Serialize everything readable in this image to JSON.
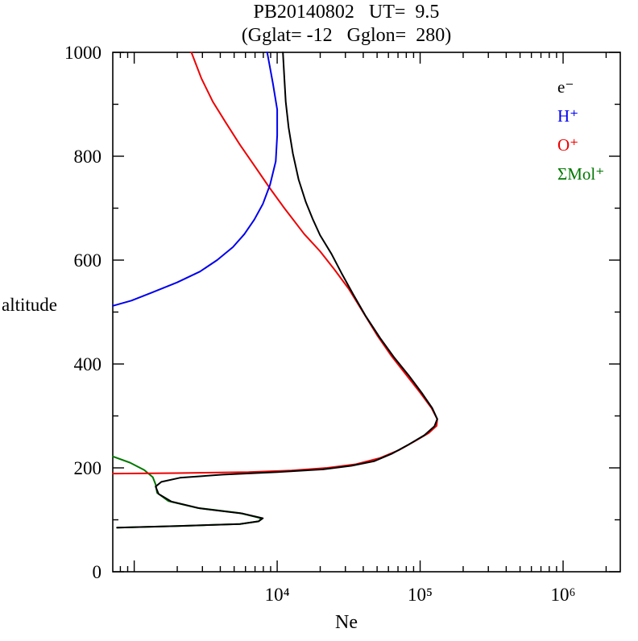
{
  "chart_data": {
    "type": "line",
    "title": "PB20140802   UT=  9.5",
    "subtitle": "(Gglat= -12   Gglon=  280)",
    "xlabel": "Ne",
    "ylabel": "altitude",
    "x_axis": {
      "scale": "log10",
      "range_log10": [
        2.85,
        6.4
      ],
      "labeled_decades": [
        4,
        5,
        6
      ],
      "decade_labels": [
        "10⁴",
        "10⁵",
        "10⁶"
      ]
    },
    "y_axis": {
      "range": [
        0,
        1000
      ],
      "major_tick_step": 200,
      "minor_tick_step": 100,
      "tick_labels": [
        "0",
        "200",
        "400",
        "600",
        "800",
        "1000"
      ]
    },
    "legend": {
      "position": "upper-right",
      "entries": [
        {
          "label": "e⁻",
          "color": "#000000"
        },
        {
          "label": "H⁺",
          "color": "#0000ee"
        },
        {
          "label": "O⁺",
          "color": "#ee0000"
        },
        {
          "label": "ΣMol⁺",
          "color": "#007700"
        }
      ]
    },
    "series": [
      {
        "name": "ΣMol⁺",
        "color": "#007700",
        "points_log10x_alt": [
          [
            2.85,
            222
          ],
          [
            2.97,
            210
          ],
          [
            3.07,
            196
          ],
          [
            3.13,
            182
          ],
          [
            3.15,
            168
          ],
          [
            3.16,
            152
          ],
          [
            3.24,
            136
          ],
          [
            3.44,
            123
          ],
          [
            3.74,
            113
          ],
          [
            3.89,
            103
          ],
          [
            3.87,
            97
          ],
          [
            3.74,
            92
          ],
          [
            3.3,
            88
          ],
          [
            2.88,
            85
          ]
        ]
      },
      {
        "name": "O⁺",
        "color": "#ee0000",
        "points_log10x_alt": [
          [
            2.85,
            189
          ],
          [
            3.3,
            190
          ],
          [
            3.8,
            192
          ],
          [
            4.1,
            195
          ],
          [
            4.35,
            200
          ],
          [
            4.55,
            207
          ],
          [
            4.72,
            219
          ],
          [
            4.85,
            234
          ],
          [
            4.96,
            251
          ],
          [
            5.06,
            267
          ],
          [
            5.115,
            281
          ],
          [
            5.12,
            294
          ],
          [
            5.08,
            315
          ],
          [
            5.0,
            345
          ],
          [
            4.9,
            380
          ],
          [
            4.8,
            415
          ],
          [
            4.7,
            455
          ],
          [
            4.6,
            500
          ],
          [
            4.5,
            545
          ],
          [
            4.4,
            582
          ],
          [
            4.3,
            617
          ],
          [
            4.19,
            650
          ],
          [
            4.05,
            700
          ],
          [
            3.95,
            738
          ],
          [
            3.85,
            778
          ],
          [
            3.74,
            822
          ],
          [
            3.64,
            865
          ],
          [
            3.55,
            905
          ],
          [
            3.47,
            950
          ],
          [
            3.4,
            1000
          ]
        ]
      },
      {
        "name": "H⁺",
        "color": "#0000ee",
        "points_log10x_alt": [
          [
            2.85,
            512
          ],
          [
            2.98,
            522
          ],
          [
            3.12,
            537
          ],
          [
            3.3,
            557
          ],
          [
            3.46,
            578
          ],
          [
            3.58,
            600
          ],
          [
            3.69,
            625
          ],
          [
            3.77,
            650
          ],
          [
            3.84,
            678
          ],
          [
            3.9,
            708
          ],
          [
            3.95,
            745
          ],
          [
            3.99,
            790
          ],
          [
            4.0,
            840
          ],
          [
            4.0,
            890
          ],
          [
            3.97,
            940
          ],
          [
            3.93,
            1000
          ]
        ]
      },
      {
        "name": "e⁻",
        "color": "#000000",
        "points_log10x_alt": [
          [
            2.88,
            85
          ],
          [
            3.3,
            88
          ],
          [
            3.74,
            92
          ],
          [
            3.87,
            97
          ],
          [
            3.9,
            103
          ],
          [
            3.76,
            112
          ],
          [
            3.46,
            122
          ],
          [
            3.26,
            135
          ],
          [
            3.17,
            150
          ],
          [
            3.15,
            164
          ],
          [
            3.19,
            173
          ],
          [
            3.32,
            181
          ],
          [
            3.62,
            187
          ],
          [
            4.0,
            192
          ],
          [
            4.32,
            197
          ],
          [
            4.52,
            204
          ],
          [
            4.68,
            213
          ],
          [
            4.8,
            227
          ],
          [
            4.92,
            245
          ],
          [
            5.03,
            263
          ],
          [
            5.1,
            280
          ],
          [
            5.12,
            294
          ],
          [
            5.085,
            315
          ],
          [
            5.01,
            345
          ],
          [
            4.92,
            378
          ],
          [
            4.82,
            412
          ],
          [
            4.72,
            450
          ],
          [
            4.62,
            492
          ],
          [
            4.53,
            535
          ],
          [
            4.45,
            575
          ],
          [
            4.38,
            612
          ],
          [
            4.3,
            648
          ],
          [
            4.25,
            678
          ],
          [
            4.2,
            712
          ],
          [
            4.15,
            755
          ],
          [
            4.11,
            805
          ],
          [
            4.08,
            855
          ],
          [
            4.06,
            905
          ],
          [
            4.05,
            950
          ],
          [
            4.04,
            1000
          ]
        ]
      }
    ]
  }
}
